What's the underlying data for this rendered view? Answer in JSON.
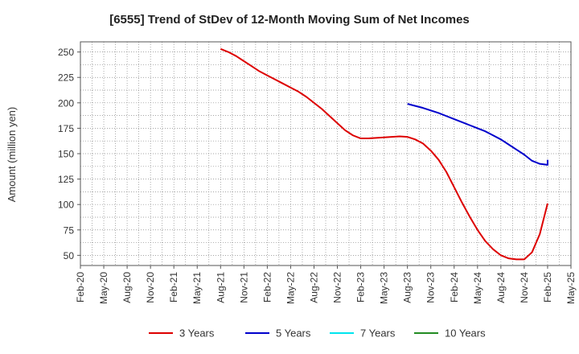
{
  "chart_data": {
    "type": "line",
    "title": "[6555]  Trend of StDev of 12-Month Moving Sum of Net Incomes",
    "ylabel": "Amount (million yen)",
    "xlabel": "",
    "ylim": [
      40,
      260
    ],
    "yticks": [
      50,
      75,
      100,
      125,
      150,
      175,
      200,
      225,
      250
    ],
    "xlim": [
      "2020-02",
      "2025-05"
    ],
    "xtick_labels": [
      "Feb-20",
      "May-20",
      "Aug-20",
      "Nov-20",
      "Feb-21",
      "May-21",
      "Aug-21",
      "Nov-21",
      "Feb-22",
      "May-22",
      "Aug-22",
      "Nov-22",
      "Feb-23",
      "May-23",
      "Aug-23",
      "Nov-23",
      "Feb-24",
      "May-24",
      "Aug-24",
      "Nov-24",
      "Feb-25",
      "May-25"
    ],
    "grid": true,
    "legend_position": "bottom",
    "series": [
      {
        "name": "3 Years",
        "color": "#dd0000",
        "points": [
          [
            "2021-08",
            253
          ],
          [
            "2021-09",
            250
          ],
          [
            "2021-10",
            246
          ],
          [
            "2021-11",
            241
          ],
          [
            "2021-12",
            236
          ],
          [
            "2022-01",
            231
          ],
          [
            "2022-02",
            227
          ],
          [
            "2022-03",
            223
          ],
          [
            "2022-04",
            219
          ],
          [
            "2022-05",
            215
          ],
          [
            "2022-06",
            211
          ],
          [
            "2022-07",
            206
          ],
          [
            "2022-08",
            200
          ],
          [
            "2022-09",
            194
          ],
          [
            "2022-10",
            187
          ],
          [
            "2022-11",
            180
          ],
          [
            "2022-12",
            173
          ],
          [
            "2023-01",
            168
          ],
          [
            "2023-02",
            165
          ],
          [
            "2023-03",
            165
          ],
          [
            "2023-04",
            165.5
          ],
          [
            "2023-05",
            166
          ],
          [
            "2023-06",
            166.5
          ],
          [
            "2023-07",
            167
          ],
          [
            "2023-08",
            166.5
          ],
          [
            "2023-09",
            164
          ],
          [
            "2023-10",
            160
          ],
          [
            "2023-11",
            153
          ],
          [
            "2023-12",
            144
          ],
          [
            "2024-01",
            132
          ],
          [
            "2024-02",
            117
          ],
          [
            "2024-03",
            102
          ],
          [
            "2024-04",
            88
          ],
          [
            "2024-05",
            75
          ],
          [
            "2024-06",
            64
          ],
          [
            "2024-07",
            56
          ],
          [
            "2024-08",
            50
          ],
          [
            "2024-09",
            47
          ],
          [
            "2024-10",
            46
          ],
          [
            "2024-11",
            46
          ],
          [
            "2024-12",
            53
          ],
          [
            "2025-01",
            71
          ],
          [
            "2025-02",
            101
          ]
        ]
      },
      {
        "name": "5 Years",
        "color": "#0000cc",
        "points": [
          [
            "2023-08",
            199
          ],
          [
            "2023-09",
            197
          ],
          [
            "2023-10",
            195
          ],
          [
            "2023-11",
            192.5
          ],
          [
            "2023-12",
            190
          ],
          [
            "2024-01",
            187
          ],
          [
            "2024-02",
            184
          ],
          [
            "2024-03",
            181
          ],
          [
            "2024-04",
            178
          ],
          [
            "2024-05",
            175
          ],
          [
            "2024-06",
            172
          ],
          [
            "2024-07",
            168
          ],
          [
            "2024-08",
            164
          ],
          [
            "2024-09",
            159
          ],
          [
            "2024-10",
            154
          ],
          [
            "2024-11",
            149
          ],
          [
            "2024-12",
            143
          ],
          [
            "2025-01",
            140
          ],
          [
            "2025-02",
            139
          ],
          [
            "2025-02",
            144
          ]
        ]
      },
      {
        "name": "7 Years",
        "color": "#00e5ee",
        "points": []
      },
      {
        "name": "10 Years",
        "color": "#228b22",
        "points": []
      }
    ]
  }
}
